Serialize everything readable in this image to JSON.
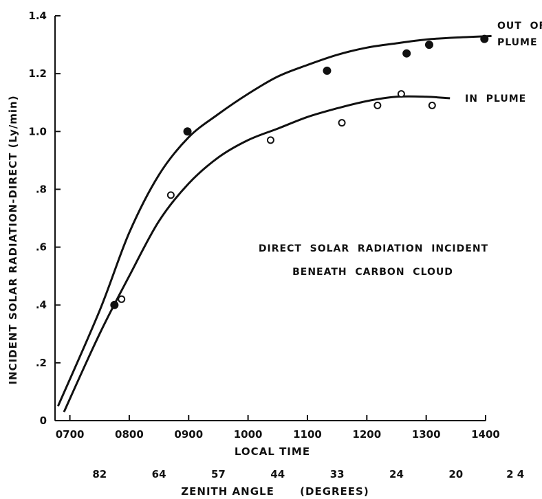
{
  "chart_data": {
    "type": "scatter",
    "title": "",
    "xlabel": "LOCAL TIME",
    "ylabel": "INCIDENT SOLAR RADIATION-DIRECT  (Ly/min)",
    "secondary_xlabel": "ZENITH ANGLE      (DEGREES)",
    "x_ticks": [
      "0700",
      "0800",
      "0900",
      "1000",
      "1100",
      "1200",
      "1300",
      "1400"
    ],
    "y_ticks": [
      "0",
      ".2",
      ".4",
      ".6",
      ".8",
      "1.0",
      "1.2",
      "1.4"
    ],
    "zenith_angles": [
      "82",
      "64",
      "57",
      "44",
      "33",
      "24",
      "20",
      "2 4"
    ],
    "xlim_hours": [
      6.75,
      14.0
    ],
    "ylim": [
      0,
      1.4
    ],
    "grid": false,
    "annotation_lines": [
      "DIRECT  SOLAR  RADIATION  INCIDENT",
      "BENEATH  CARBON  CLOUD"
    ],
    "series": [
      {
        "name_lines": [
          "OUT  OF",
          "PLUME"
        ],
        "marker": "filled-circle",
        "color": "#111111",
        "points": [
          {
            "x": 7.75,
            "y": 0.4
          },
          {
            "x": 8.98,
            "y": 1.0
          },
          {
            "x": 11.33,
            "y": 1.21
          },
          {
            "x": 12.67,
            "y": 1.27
          },
          {
            "x": 13.05,
            "y": 1.3
          },
          {
            "x": 13.98,
            "y": 1.32
          }
        ],
        "curve": [
          {
            "x": 6.8,
            "y": 0.05
          },
          {
            "x": 7.5,
            "y": 0.38
          },
          {
            "x": 8.0,
            "y": 0.65
          },
          {
            "x": 8.5,
            "y": 0.85
          },
          {
            "x": 9.0,
            "y": 0.98
          },
          {
            "x": 9.5,
            "y": 1.06
          },
          {
            "x": 10.0,
            "y": 1.13
          },
          {
            "x": 10.5,
            "y": 1.19
          },
          {
            "x": 11.0,
            "y": 1.23
          },
          {
            "x": 11.5,
            "y": 1.265
          },
          {
            "x": 12.0,
            "y": 1.29
          },
          {
            "x": 12.5,
            "y": 1.305
          },
          {
            "x": 13.0,
            "y": 1.318
          },
          {
            "x": 13.5,
            "y": 1.325
          },
          {
            "x": 14.1,
            "y": 1.33
          }
        ]
      },
      {
        "name_lines": [
          "IN  PLUME"
        ],
        "marker": "open-circle",
        "color": "#111111",
        "points": [
          {
            "x": 7.87,
            "y": 0.42
          },
          {
            "x": 8.7,
            "y": 0.78
          },
          {
            "x": 10.38,
            "y": 0.97
          },
          {
            "x": 11.58,
            "y": 1.03
          },
          {
            "x": 12.18,
            "y": 1.09
          },
          {
            "x": 12.58,
            "y": 1.13
          },
          {
            "x": 13.1,
            "y": 1.09
          }
        ],
        "curve": [
          {
            "x": 6.9,
            "y": 0.03
          },
          {
            "x": 7.5,
            "y": 0.3
          },
          {
            "x": 8.0,
            "y": 0.5
          },
          {
            "x": 8.5,
            "y": 0.69
          },
          {
            "x": 9.0,
            "y": 0.82
          },
          {
            "x": 9.5,
            "y": 0.91
          },
          {
            "x": 10.0,
            "y": 0.97
          },
          {
            "x": 10.5,
            "y": 1.01
          },
          {
            "x": 11.0,
            "y": 1.05
          },
          {
            "x": 11.5,
            "y": 1.08
          },
          {
            "x": 12.0,
            "y": 1.105
          },
          {
            "x": 12.5,
            "y": 1.12
          },
          {
            "x": 13.0,
            "y": 1.12
          },
          {
            "x": 13.4,
            "y": 1.115
          }
        ]
      }
    ]
  }
}
